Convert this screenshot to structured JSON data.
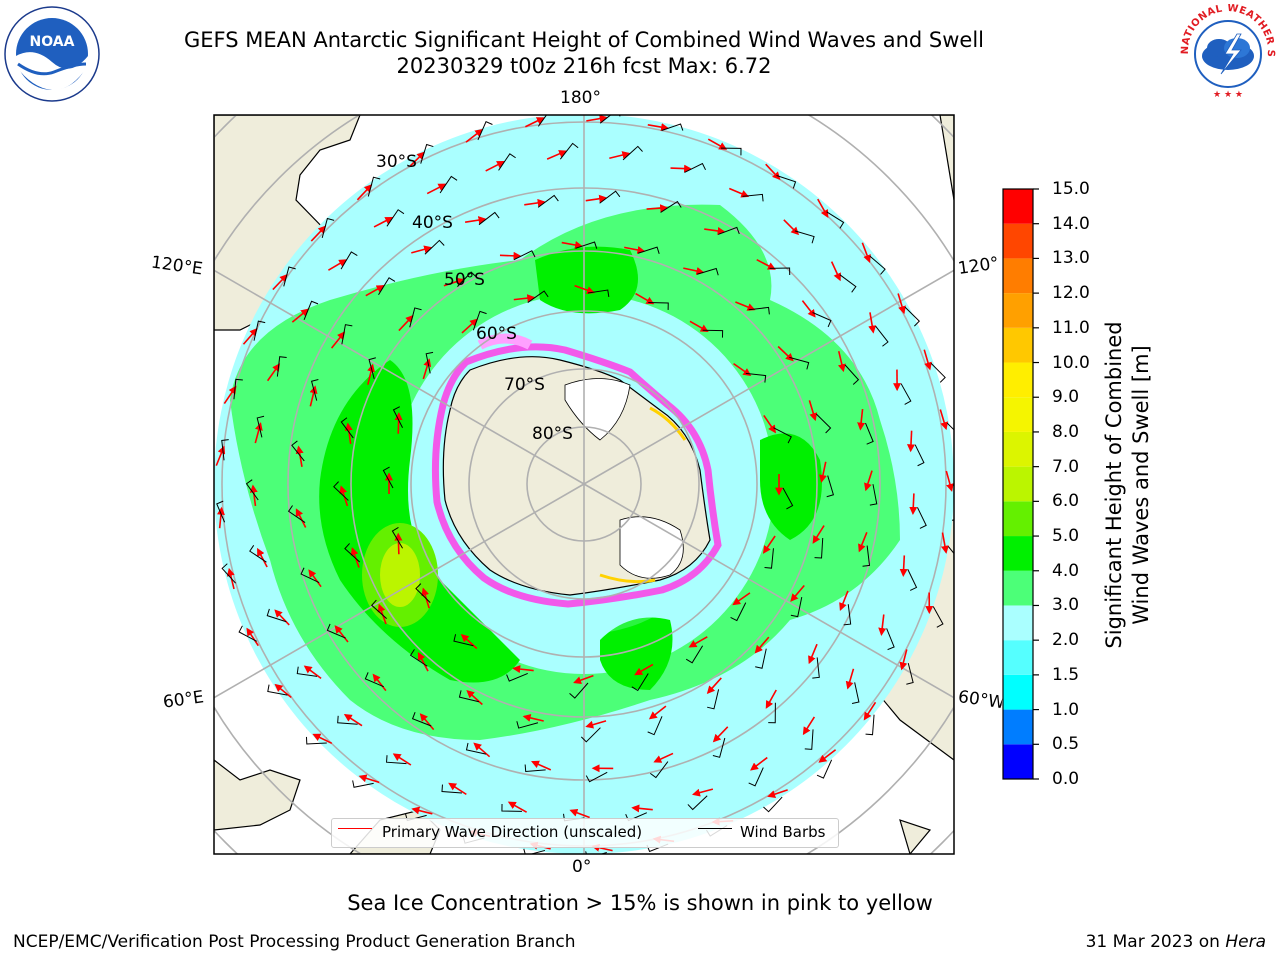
{
  "title": {
    "line1": "GEFS MEAN Antarctic Significant Height of Combined Wind Waves and Swell",
    "line2": "20230329 t00z 216h fcst   Max: 6.72"
  },
  "logos": {
    "left": {
      "name": "noaa-logo",
      "text": "NOAA"
    },
    "right": {
      "name": "nws-logo",
      "text": "NATIONAL WEATHER SERVICE"
    }
  },
  "map": {
    "projection": "south-polar-stereographic",
    "longitude_labels": {
      "top": "180°",
      "bottom": "0°",
      "left_upper": "120°E",
      "left_lower": "60°E",
      "right_upper": "120°",
      "right_lower": "60°W"
    },
    "latitude_labels": [
      "30°S",
      "40°S",
      "50°S",
      "60°S",
      "70°S",
      "80°S"
    ],
    "land_color": "#efeddb",
    "ice_colors": [
      "#ff3ce6",
      "#ffa0ff",
      "#ffd200"
    ]
  },
  "colorbar": {
    "title_line1": "Significant Height of Combined",
    "title_line2": "Wind Waves and Swell [m]",
    "ticks": [
      "15.0",
      "14.0",
      "13.0",
      "12.0",
      "11.0",
      "10.0",
      "9.0",
      "8.0",
      "7.0",
      "6.0",
      "5.0",
      "4.0",
      "3.0",
      "2.0",
      "1.5",
      "1.0",
      "0.5",
      "0.0"
    ],
    "bands": [
      {
        "from": 0.0,
        "to": 0.5,
        "color": "#0000ff"
      },
      {
        "from": 0.5,
        "to": 1.0,
        "color": "#007dff"
      },
      {
        "from": 1.0,
        "to": 1.5,
        "color": "#00ffff"
      },
      {
        "from": 1.5,
        "to": 2.0,
        "color": "#55ffff"
      },
      {
        "from": 2.0,
        "to": 3.0,
        "color": "#aaffff"
      },
      {
        "from": 3.0,
        "to": 4.0,
        "color": "#4cff78"
      },
      {
        "from": 4.0,
        "to": 5.0,
        "color": "#00f000"
      },
      {
        "from": 5.0,
        "to": 6.0,
        "color": "#64f000"
      },
      {
        "from": 6.0,
        "to": 7.0,
        "color": "#bbf500"
      },
      {
        "from": 7.0,
        "to": 8.0,
        "color": "#dcf500"
      },
      {
        "from": 8.0,
        "to": 9.0,
        "color": "#f5f500"
      },
      {
        "from": 9.0,
        "to": 10.0,
        "color": "#ffee00"
      },
      {
        "from": 10.0,
        "to": 11.0,
        "color": "#ffc800"
      },
      {
        "from": 11.0,
        "to": 12.0,
        "color": "#ffa000"
      },
      {
        "from": 12.0,
        "to": 13.0,
        "color": "#ff7d00"
      },
      {
        "from": 13.0,
        "to": 14.0,
        "color": "#ff4600"
      },
      {
        "from": 14.0,
        "to": 15.0,
        "color": "#ff0000"
      }
    ]
  },
  "legend": {
    "wave": {
      "label": "Primary Wave Direction (unscaled)",
      "color": "#ff0000"
    },
    "barb": {
      "label": "Wind Barbs",
      "color": "#000000"
    }
  },
  "note": "Sea Ice Concentration > 15% is shown in pink to yellow",
  "footer": {
    "left": "NCEP/EMC/Verification Post Processing Product Generation Branch",
    "right_date": "31 Mar 2023 on",
    "right_host": "Hera"
  }
}
